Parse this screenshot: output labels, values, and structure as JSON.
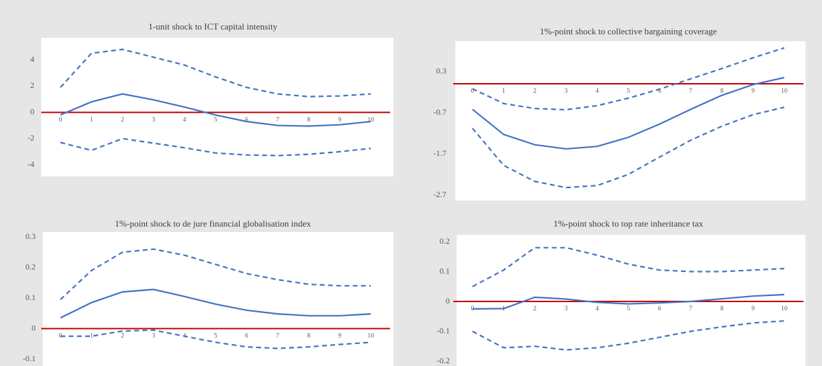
{
  "chart_data": [
    {
      "type": "line",
      "title": "1-unit shock to ICT capital intensity",
      "categories": [
        "0",
        "1",
        "2",
        "3",
        "4",
        "5",
        "6",
        "7",
        "8",
        "9",
        "10"
      ],
      "ylim": [
        -4,
        5.5
      ],
      "yticks": [
        -4,
        -2,
        0,
        2,
        4
      ],
      "zero_line_color": "#c00000",
      "series": [
        {
          "color": "#4472c4",
          "style": "solid",
          "values": [
            -0.2,
            0.8,
            1.4,
            0.95,
            0.4,
            -0.2,
            -0.7,
            -1.0,
            -1.05,
            -0.95,
            -0.7
          ]
        },
        {
          "color": "#4472c4",
          "style": "dashed",
          "values": [
            1.9,
            4.5,
            4.8,
            4.2,
            3.6,
            2.7,
            1.9,
            1.4,
            1.2,
            1.25,
            1.4
          ]
        },
        {
          "color": "#4472c4",
          "style": "dashed",
          "values": [
            -2.3,
            -2.9,
            -2.0,
            -2.35,
            -2.7,
            -3.1,
            -3.25,
            -3.3,
            -3.2,
            -3.0,
            -2.75
          ]
        }
      ]
    },
    {
      "type": "line",
      "title": "1%-point shock to collective bargaining coverage",
      "categories": [
        "0",
        "1",
        "2",
        "3",
        "4",
        "5",
        "6",
        "7",
        "8",
        "9",
        "10"
      ],
      "ylim": [
        -2.7,
        1.0
      ],
      "yticks": [
        -2.7,
        -1.7,
        -0.7,
        0.3
      ],
      "zero_line_color": "#c00000",
      "series": [
        {
          "color": "#4472c4",
          "style": "solid",
          "values": [
            -0.62,
            -1.23,
            -1.48,
            -1.58,
            -1.52,
            -1.3,
            -0.98,
            -0.62,
            -0.28,
            -0.02,
            0.15
          ]
        },
        {
          "color": "#4472c4",
          "style": "dashed",
          "values": [
            -0.12,
            -0.48,
            -0.6,
            -0.63,
            -0.53,
            -0.35,
            -0.13,
            0.12,
            0.37,
            0.63,
            0.87
          ]
        },
        {
          "color": "#4472c4",
          "style": "dashed",
          "values": [
            -1.08,
            -1.98,
            -2.37,
            -2.52,
            -2.47,
            -2.2,
            -1.78,
            -1.37,
            -1.03,
            -0.75,
            -0.57
          ]
        }
      ]
    },
    {
      "type": "line",
      "title": "1%-point shock to de jure financial globalisation index",
      "categories": [
        "0",
        "1",
        "2",
        "3",
        "4",
        "5",
        "6",
        "7",
        "8",
        "9",
        "10"
      ],
      "ylim": [
        -0.1,
        0.3
      ],
      "yticks": [
        -0.1,
        0,
        0.1,
        0.2,
        0.3
      ],
      "zero_line_color": "#c00000",
      "series": [
        {
          "color": "#4472c4",
          "style": "solid",
          "values": [
            0.035,
            0.085,
            0.12,
            0.128,
            0.105,
            0.08,
            0.06,
            0.048,
            0.042,
            0.042,
            0.048
          ]
        },
        {
          "color": "#4472c4",
          "style": "dashed",
          "values": [
            0.095,
            0.19,
            0.25,
            0.26,
            0.24,
            0.21,
            0.18,
            0.16,
            0.145,
            0.14,
            0.14
          ]
        },
        {
          "color": "#4472c4",
          "style": "dashed",
          "values": [
            -0.025,
            -0.025,
            -0.008,
            -0.005,
            -0.025,
            -0.045,
            -0.06,
            -0.065,
            -0.06,
            -0.052,
            -0.045
          ]
        }
      ]
    },
    {
      "type": "line",
      "title": "1%-point shock to top rate inheritance tax",
      "categories": [
        "0",
        "1",
        "2",
        "3",
        "4",
        "5",
        "6",
        "7",
        "8",
        "9",
        "10"
      ],
      "ylim": [
        -0.2,
        0.2
      ],
      "yticks": [
        -0.2,
        -0.1,
        0,
        0.1,
        0.2
      ],
      "zero_line_color": "#c00000",
      "series": [
        {
          "color": "#4472c4",
          "style": "solid",
          "values": [
            -0.025,
            -0.024,
            0.014,
            0.008,
            -0.003,
            -0.008,
            -0.005,
            0,
            0.009,
            0.018,
            0.023
          ]
        },
        {
          "color": "#4472c4",
          "style": "dashed",
          "values": [
            0.05,
            0.105,
            0.18,
            0.18,
            0.155,
            0.125,
            0.105,
            0.1,
            0.1,
            0.105,
            0.11
          ]
        },
        {
          "color": "#4472c4",
          "style": "dashed",
          "values": [
            -0.1,
            -0.155,
            -0.15,
            -0.162,
            -0.155,
            -0.14,
            -0.12,
            -0.1,
            -0.085,
            -0.072,
            -0.065
          ]
        }
      ]
    }
  ]
}
